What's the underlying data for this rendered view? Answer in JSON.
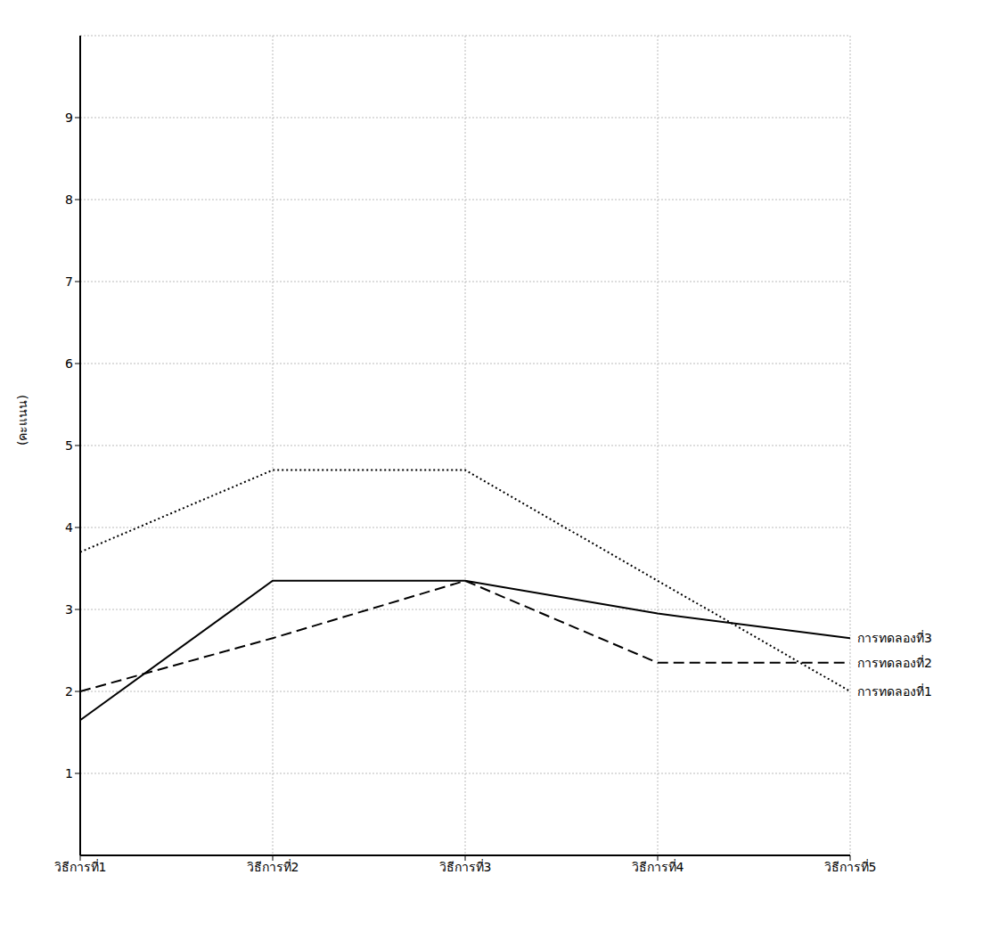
{
  "chart_data": {
    "type": "line",
    "y_label": "(คะแนน)",
    "categories": [
      "วิธีการที่1",
      "วิธีการที่2",
      "วิธีการที่3",
      "วิธีการที่4",
      "วิธีการที่5"
    ],
    "series": [
      {
        "name": "การทดลองที่3",
        "color": "#000000",
        "line_style": "solid",
        "values": [
          1.65,
          3.35,
          3.35,
          2.95,
          2.65
        ]
      },
      {
        "name": "การทดลองที่2",
        "color": "#000000",
        "line_style": "dashed",
        "values": [
          2.0,
          2.65,
          3.35,
          2.35,
          2.35
        ]
      },
      {
        "name": "การทดลองที่1",
        "color": "#000000",
        "line_style": "dotted",
        "values": [
          3.7,
          4.7,
          4.7,
          3.35,
          2.0
        ]
      }
    ],
    "ylim": [
      0,
      10
    ],
    "yticks": [
      1,
      2,
      3,
      4,
      5,
      6,
      7,
      8,
      9
    ],
    "grid": true
  }
}
